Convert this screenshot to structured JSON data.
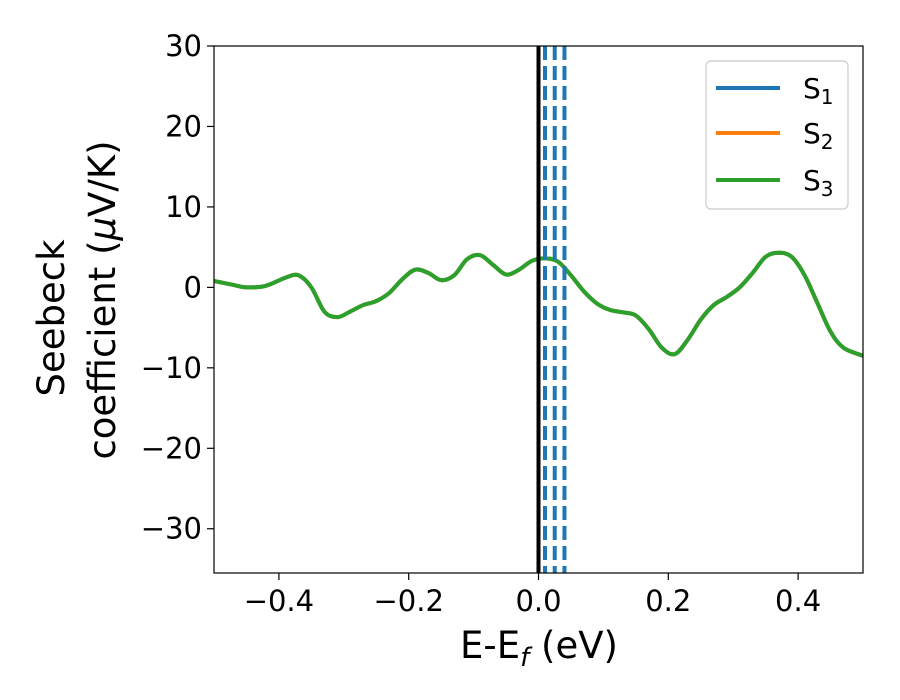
{
  "chart_data": {
    "type": "line",
    "xlabel": {
      "main": "E-E",
      "sub": "f",
      "unit": " (eV)"
    },
    "ylabel": {
      "line1": "Seebeck",
      "line2": "coefficient  (",
      "mu": "μ",
      "line2_end": "V/K)"
    },
    "xlim": [
      -0.5,
      0.5
    ],
    "ylim": [
      -35.5,
      30
    ],
    "xticks": [
      -0.4,
      -0.2,
      0.0,
      0.2,
      0.4
    ],
    "xtick_labels": [
      "−0.4",
      "−0.2",
      "0.0",
      "0.2",
      "0.4"
    ],
    "yticks": [
      -30,
      -20,
      -10,
      0,
      10,
      20,
      30
    ],
    "ytick_labels": [
      "−30",
      "−20",
      "−10",
      "0",
      "10",
      "20",
      "30"
    ],
    "grid": false,
    "legend_position": "top-right",
    "series": [
      {
        "name": "S1",
        "label_main": "S",
        "label_sub": "1",
        "color": "#1f77b4",
        "x": [
          -0.5,
          -0.47,
          -0.45,
          -0.42,
          -0.39,
          -0.37,
          -0.35,
          -0.33,
          -0.31,
          -0.29,
          -0.27,
          -0.25,
          -0.23,
          -0.21,
          -0.19,
          -0.17,
          -0.15,
          -0.13,
          -0.11,
          -0.09,
          -0.07,
          -0.05,
          -0.03,
          -0.01,
          0.01,
          0.03,
          0.05,
          0.07,
          0.09,
          0.11,
          0.13,
          0.15,
          0.17,
          0.19,
          0.21,
          0.23,
          0.25,
          0.27,
          0.29,
          0.31,
          0.33,
          0.35,
          0.37,
          0.39,
          0.41,
          0.43,
          0.45,
          0.47,
          0.5
        ],
        "values": [
          0.8,
          0.3,
          0.0,
          0.2,
          1.2,
          1.5,
          0.0,
          -3.0,
          -3.7,
          -3.0,
          -2.2,
          -1.7,
          -0.7,
          1.0,
          2.2,
          1.8,
          0.9,
          1.5,
          3.5,
          4.0,
          2.8,
          1.6,
          2.2,
          3.3,
          3.6,
          3.2,
          1.5,
          -0.5,
          -2.0,
          -2.8,
          -3.1,
          -3.5,
          -5.2,
          -7.5,
          -8.3,
          -6.5,
          -4.0,
          -2.2,
          -1.2,
          0.0,
          1.8,
          3.8,
          4.3,
          3.8,
          1.5,
          -2.0,
          -5.5,
          -7.5,
          -8.5
        ]
      },
      {
        "name": "S2",
        "label_main": "S",
        "label_sub": "2",
        "color": "#ff7f0e",
        "x": [
          -0.5,
          -0.47,
          -0.45,
          -0.42,
          -0.39,
          -0.37,
          -0.35,
          -0.33,
          -0.31,
          -0.29,
          -0.27,
          -0.25,
          -0.23,
          -0.21,
          -0.19,
          -0.17,
          -0.15,
          -0.13,
          -0.11,
          -0.09,
          -0.07,
          -0.05,
          -0.03,
          -0.01,
          0.01,
          0.03,
          0.05,
          0.07,
          0.09,
          0.11,
          0.13,
          0.15,
          0.17,
          0.19,
          0.21,
          0.23,
          0.25,
          0.27,
          0.29,
          0.31,
          0.33,
          0.35,
          0.37,
          0.39,
          0.41,
          0.43,
          0.45,
          0.47,
          0.5
        ],
        "values": [
          0.8,
          0.3,
          0.0,
          0.2,
          1.2,
          1.5,
          0.0,
          -3.0,
          -3.7,
          -3.0,
          -2.2,
          -1.7,
          -0.7,
          1.0,
          2.2,
          1.8,
          0.9,
          1.5,
          3.5,
          4.0,
          2.8,
          1.6,
          2.2,
          3.3,
          3.6,
          3.2,
          1.5,
          -0.5,
          -2.0,
          -2.8,
          -3.1,
          -3.5,
          -5.2,
          -7.5,
          -8.3,
          -6.5,
          -4.0,
          -2.2,
          -1.2,
          0.0,
          1.8,
          3.8,
          4.3,
          3.8,
          1.5,
          -2.0,
          -5.5,
          -7.5,
          -8.5
        ]
      },
      {
        "name": "S3",
        "label_main": "S",
        "label_sub": "3",
        "color": "#2ca02c",
        "x": [
          -0.5,
          -0.47,
          -0.45,
          -0.42,
          -0.39,
          -0.37,
          -0.35,
          -0.33,
          -0.31,
          -0.29,
          -0.27,
          -0.25,
          -0.23,
          -0.21,
          -0.19,
          -0.17,
          -0.15,
          -0.13,
          -0.11,
          -0.09,
          -0.07,
          -0.05,
          -0.03,
          -0.01,
          0.01,
          0.03,
          0.05,
          0.07,
          0.09,
          0.11,
          0.13,
          0.15,
          0.17,
          0.19,
          0.21,
          0.23,
          0.25,
          0.27,
          0.29,
          0.31,
          0.33,
          0.35,
          0.37,
          0.39,
          0.41,
          0.43,
          0.45,
          0.47,
          0.5
        ],
        "values": [
          0.8,
          0.3,
          0.0,
          0.2,
          1.2,
          1.5,
          0.0,
          -3.0,
          -3.7,
          -3.0,
          -2.2,
          -1.7,
          -0.7,
          1.0,
          2.2,
          1.8,
          0.9,
          1.5,
          3.5,
          4.0,
          2.8,
          1.6,
          2.2,
          3.3,
          3.6,
          3.2,
          1.5,
          -0.5,
          -2.0,
          -2.8,
          -3.1,
          -3.5,
          -5.2,
          -7.5,
          -8.3,
          -6.5,
          -4.0,
          -2.2,
          -1.2,
          0.0,
          1.8,
          3.8,
          4.3,
          3.8,
          1.5,
          -2.0,
          -5.5,
          -7.5,
          -8.5
        ]
      }
    ],
    "vertical_lines": [
      {
        "x": 0.0,
        "color": "#000000",
        "style": "solid"
      },
      {
        "x": 0.01,
        "color": "#1f77b4",
        "style": "dashed"
      },
      {
        "x": 0.025,
        "color": "#1f77b4",
        "style": "dashed"
      },
      {
        "x": 0.04,
        "color": "#1f77b4",
        "style": "dashed"
      }
    ]
  }
}
